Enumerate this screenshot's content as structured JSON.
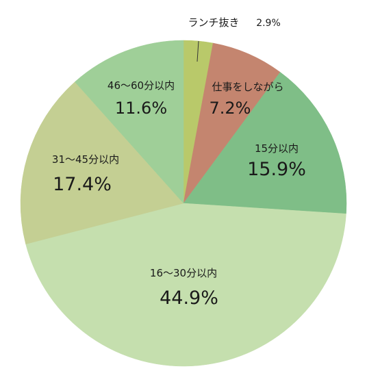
{
  "chart_data": {
    "type": "pie",
    "start_angle_deg": 0,
    "direction": "clockwise",
    "slices": [
      {
        "label": "ランチ抜き",
        "value": 2.9,
        "value_label": "2.9%",
        "color": "#b9c96a"
      },
      {
        "label": "仕事をしながら",
        "value": 7.2,
        "value_label": "7.2%",
        "color": "#c4856f"
      },
      {
        "label": "15分以内",
        "value": 15.9,
        "value_label": "15.9%",
        "color": "#7fbe87"
      },
      {
        "label": "16〜30分以内",
        "value": 44.9,
        "value_label": "44.9%",
        "color": "#c5dfae"
      },
      {
        "label": "31〜45分以内",
        "value": 17.4,
        "value_label": "17.4%",
        "color": "#c4cf93"
      },
      {
        "label": "46〜60分以内",
        "value": 11.6,
        "value_label": "11.6%",
        "color": "#9fcf98"
      }
    ]
  }
}
